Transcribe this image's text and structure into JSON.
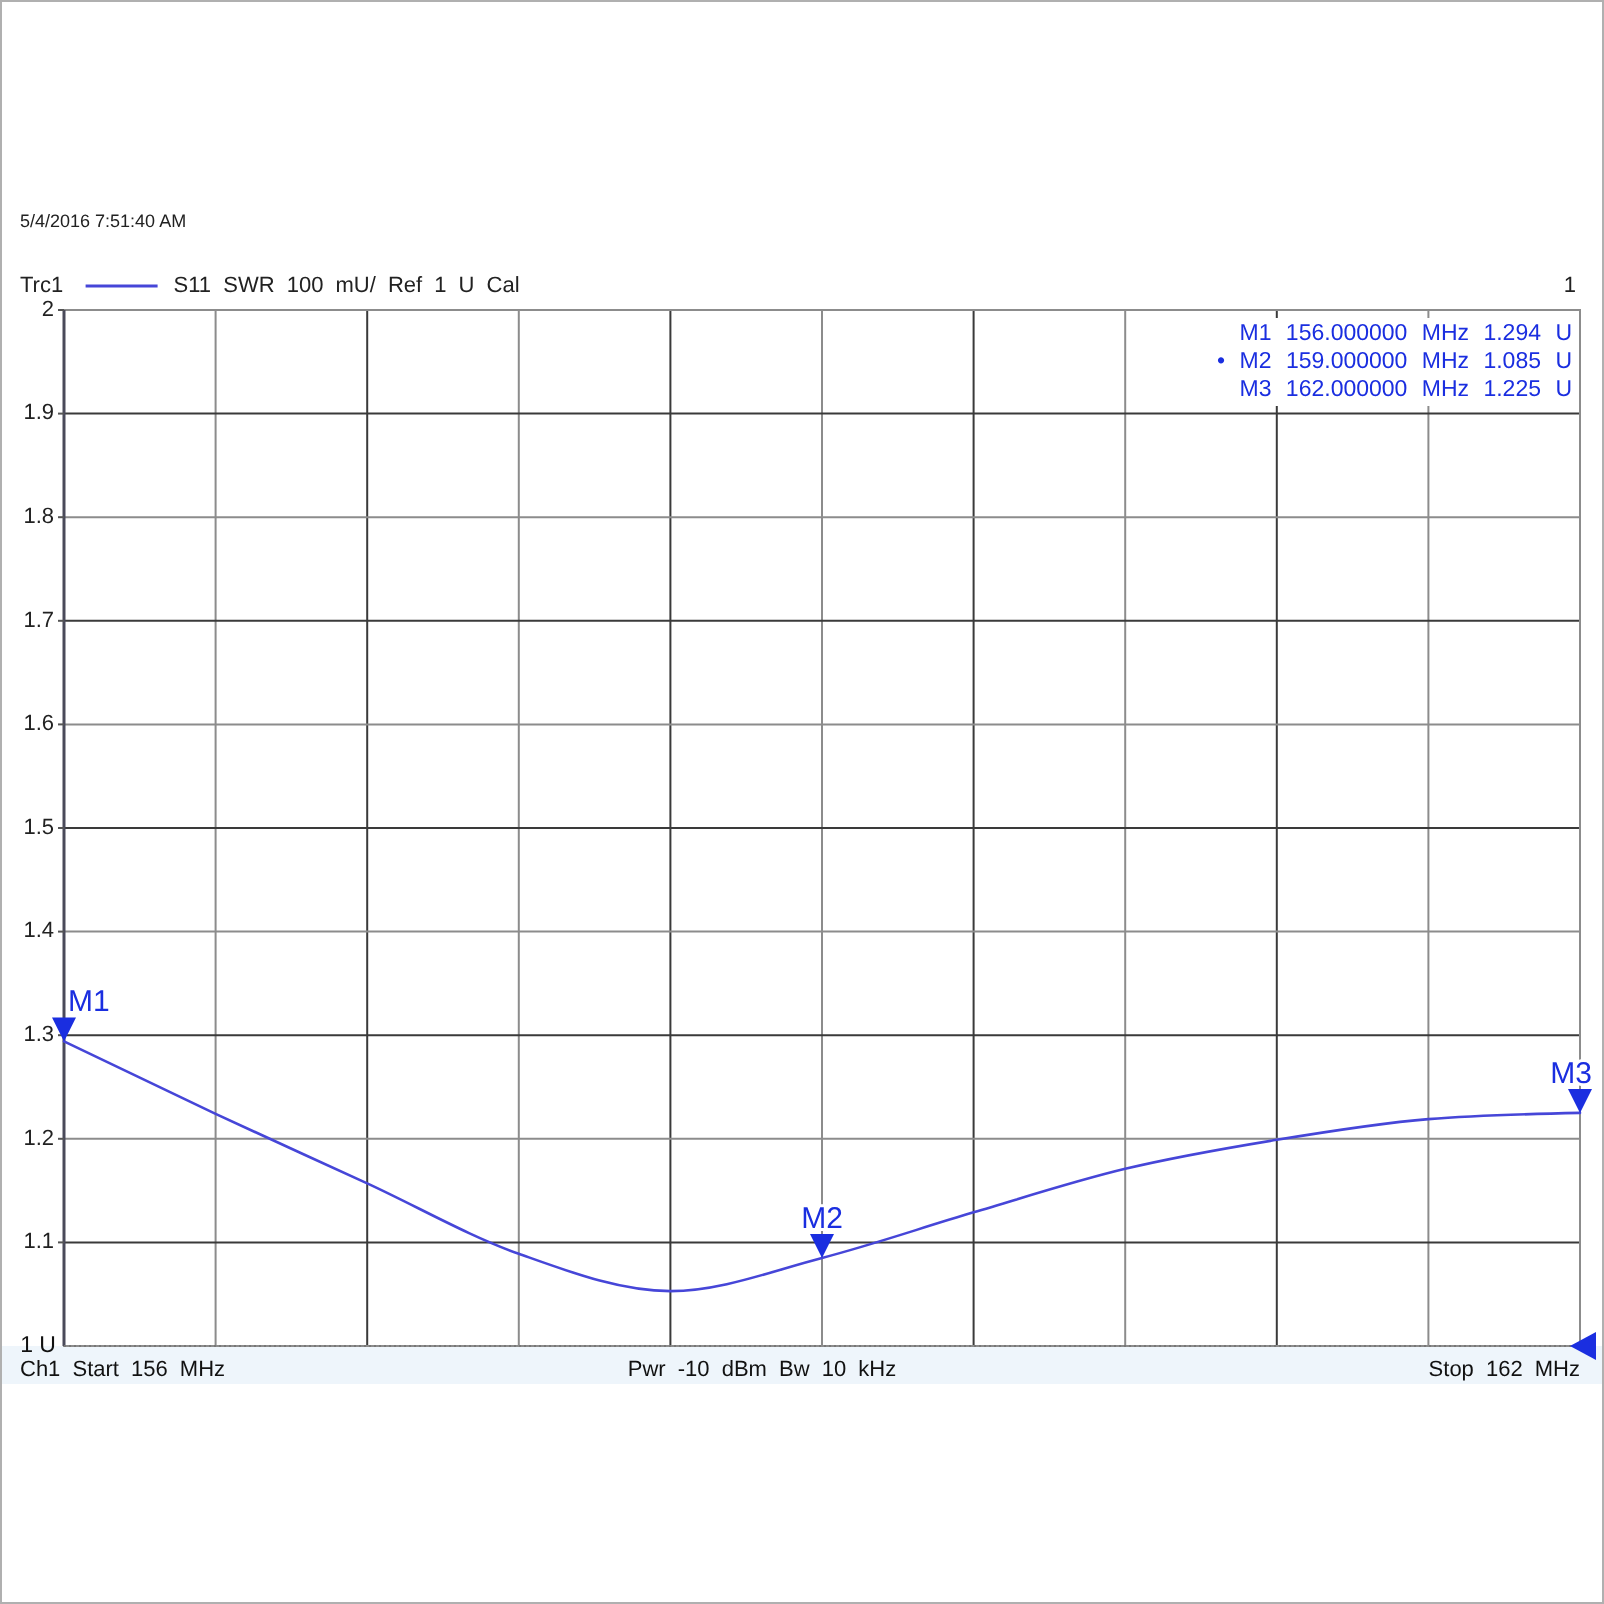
{
  "chart_data": {
    "type": "line",
    "title": "5/4/2016 7:51:40 AM",
    "subtitle": "S11 SWR 100 mU/ Ref 1 U Cal",
    "categories": [
      null,
      null,
      null,
      null,
      null,
      null,
      null,
      null,
      null,
      null,
      null
    ],
    "series": [
      {
        "name": "Trc1",
        "color": "#4646d8",
        "values": [
          1.294,
          1.224,
          1.157,
          1.089,
          1.053,
          1.085,
          1.129,
          1.171,
          1.199,
          1.219,
          1.225
        ]
      }
    ],
    "ylim": [
      1,
      2
    ],
    "yticks": [
      {
        "value": 1,
        "label": null
      },
      1.1,
      1.2,
      1.3,
      1.4,
      1.5,
      1.6,
      1.7,
      1.8,
      1.9,
      2
    ],
    "tick_labels": "y",
    "grid": true,
    "legend": "top left",
    "ref_lines": [
      {
        "axis": "y",
        "value": 1,
        "label": "1 U",
        "color": "#777777",
        "line_style": "dotted"
      }
    ],
    "annotations": [
      {
        "text": "M1",
        "y": 1.294
      },
      {
        "text": "M2",
        "y": 1.085
      },
      {
        "text": "M3",
        "y": 1.225
      },
      "M1 156.000000 MHz 1.294 U",
      "• M2 159.000000 MHz 1.085 U",
      "M3 162.000000 MHz 1.225 U",
      "1",
      "Ch1 Start 156 MHz",
      "Pwr -10 dBm Bw 10 kHz",
      "Stop 162 MHz"
    ]
  }
}
